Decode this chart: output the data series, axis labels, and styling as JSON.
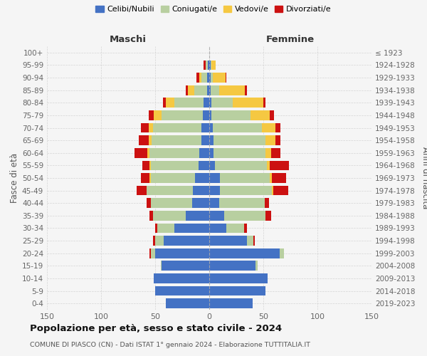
{
  "age_groups": [
    "100+",
    "95-99",
    "90-94",
    "85-89",
    "80-84",
    "75-79",
    "70-74",
    "65-69",
    "60-64",
    "55-59",
    "50-54",
    "45-49",
    "40-44",
    "35-39",
    "30-34",
    "25-29",
    "20-24",
    "15-19",
    "10-14",
    "5-9",
    "0-4"
  ],
  "birth_years": [
    "≤ 1923",
    "1924-1928",
    "1929-1933",
    "1934-1938",
    "1939-1943",
    "1944-1948",
    "1949-1953",
    "1954-1958",
    "1959-1963",
    "1964-1968",
    "1969-1973",
    "1974-1978",
    "1979-1983",
    "1984-1988",
    "1989-1993",
    "1994-1998",
    "1999-2003",
    "2004-2008",
    "2009-2013",
    "2014-2018",
    "2019-2023"
  ],
  "maschi": {
    "celibi": [
      0,
      1,
      2,
      2,
      5,
      6,
      7,
      7,
      9,
      10,
      13,
      15,
      16,
      22,
      32,
      42,
      50,
      44,
      51,
      50,
      40
    ],
    "coniugati": [
      0,
      2,
      5,
      12,
      27,
      38,
      45,
      46,
      46,
      44,
      41,
      43,
      38,
      30,
      16,
      8,
      4,
      1,
      0,
      0,
      0
    ],
    "vedovi": [
      0,
      0,
      2,
      6,
      8,
      7,
      4,
      3,
      2,
      1,
      1,
      0,
      0,
      0,
      0,
      0,
      0,
      0,
      0,
      0,
      0
    ],
    "divorziati": [
      0,
      2,
      3,
      2,
      3,
      5,
      7,
      9,
      12,
      7,
      8,
      9,
      4,
      3,
      2,
      2,
      1,
      0,
      0,
      0,
      0
    ]
  },
  "femmine": {
    "nubili": [
      0,
      1,
      1,
      1,
      2,
      2,
      3,
      4,
      4,
      5,
      10,
      10,
      9,
      14,
      16,
      35,
      65,
      43,
      54,
      52,
      40
    ],
    "coniugate": [
      0,
      1,
      2,
      8,
      20,
      36,
      46,
      48,
      48,
      48,
      46,
      48,
      42,
      38,
      16,
      6,
      4,
      2,
      0,
      0,
      0
    ],
    "vedove": [
      0,
      4,
      12,
      24,
      28,
      18,
      12,
      9,
      5,
      3,
      2,
      1,
      0,
      0,
      0,
      0,
      0,
      0,
      0,
      0,
      0
    ],
    "divorziate": [
      0,
      0,
      1,
      2,
      2,
      4,
      5,
      5,
      9,
      18,
      13,
      14,
      4,
      5,
      3,
      1,
      0,
      0,
      0,
      0,
      0
    ]
  },
  "colors": {
    "celibi": "#4472c4",
    "coniugati": "#b8cfa0",
    "vedovi": "#f5c842",
    "divorziati": "#cc1111"
  },
  "xlim": 150,
  "title": "Popolazione per età, sesso e stato civile - 2024",
  "subtitle": "COMUNE DI PIASCO (CN) - Dati ISTAT 1° gennaio 2024 - Elaborazione TUTTITALIA.IT",
  "ylabel_left": "Fasce di età",
  "ylabel_right": "Anni di nascita",
  "xlabel_maschi": "Maschi",
  "xlabel_femmine": "Femmine",
  "legend_labels": [
    "Celibi/Nubili",
    "Coniugati/e",
    "Vedovi/e",
    "Divorziati/e"
  ],
  "bg_color": "#f5f5f5"
}
